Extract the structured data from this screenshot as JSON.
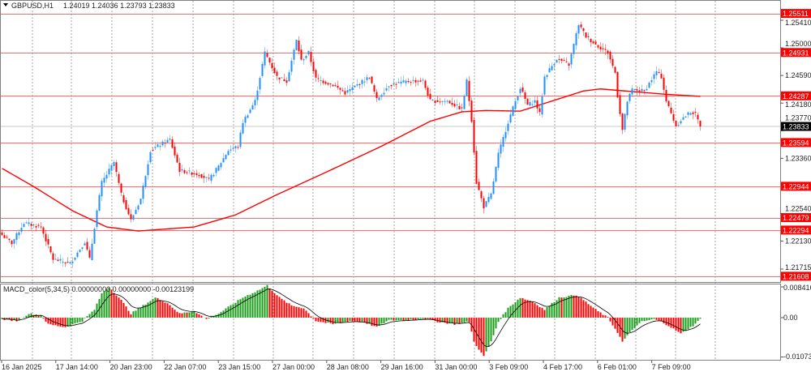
{
  "header": {
    "symbol": "GBPUSD,H1",
    "ohlc": "1.24019 1.24036 1.23793 1.23833",
    "dropdown_icon": "triangle-down-icon"
  },
  "indicator": {
    "label": "MACD_color(5,34,5) 0.00000000 0.00000000 -0.00123199",
    "axis_labels": [
      "0.0084161",
      "0.00",
      "-0.0107381"
    ],
    "axis_values": [
      0.0084161,
      0,
      -0.0107381
    ]
  },
  "colors": {
    "bull": "#1e90ff",
    "bear": "#ff0000",
    "level_line": "#ff6b6b",
    "ma": "#ff0000",
    "macd_up": "#1a9c1a",
    "macd_down": "#ff0000",
    "grid": "#808080"
  },
  "chart_data": {
    "type": "candlestick",
    "symbol": "GBPUSD",
    "timeframe": "H1",
    "y_ticks": [
      "1.25410",
      "1.25000",
      "1.24590",
      "1.24180",
      "1.23770",
      "1.23360",
      "1.22540",
      "1.22130",
      "1.21715"
    ],
    "y_tick_values": [
      1.2541,
      1.25,
      1.2459,
      1.2418,
      1.2377,
      1.2336,
      1.2254,
      1.2213,
      1.21715
    ],
    "x_ticks": [
      "16 Jan 2025",
      "17 Jan 14:00",
      "20 Jan 23:00",
      "22 Jan 07:00",
      "23 Jan 15:00",
      "27 Jan 00:00",
      "28 Jan 08:00",
      "29 Jan 16:00",
      "31 Jan 00:00",
      "3 Feb 09:00",
      "4 Feb 17:00",
      "6 Feb 01:00",
      "7 Feb 09:00"
    ],
    "levels": [
      "1.25511",
      "1.24931",
      "1.24287",
      "1.23594",
      "1.22944",
      "1.22479",
      "1.22294",
      "1.21608"
    ],
    "current_price": "1.23833",
    "close_path": [
      [
        0,
        1.2222
      ],
      [
        4,
        1.221
      ],
      [
        9,
        1.224
      ],
      [
        16,
        1.2234
      ],
      [
        21,
        1.2186
      ],
      [
        28,
        1.218
      ],
      [
        34,
        1.2212
      ],
      [
        36,
        1.2186
      ],
      [
        39,
        1.2258
      ],
      [
        41,
        1.23
      ],
      [
        46,
        1.233
      ],
      [
        49,
        1.2282
      ],
      [
        53,
        1.2244
      ],
      [
        57,
        1.2276
      ],
      [
        61,
        1.2348
      ],
      [
        69,
        1.2364
      ],
      [
        73,
        1.2318
      ],
      [
        81,
        1.2312
      ],
      [
        85,
        1.2304
      ],
      [
        89,
        1.2324
      ],
      [
        93,
        1.2348
      ],
      [
        97,
        1.2354
      ],
      [
        99,
        1.239
      ],
      [
        104,
        1.2421
      ],
      [
        107,
        1.2475
      ],
      [
        108,
        1.2493
      ],
      [
        113,
        1.2457
      ],
      [
        117,
        1.2451
      ],
      [
        121,
        1.2511
      ],
      [
        123,
        1.2481
      ],
      [
        126,
        1.2493
      ],
      [
        129,
        1.2454
      ],
      [
        136,
        1.2445
      ],
      [
        141,
        1.2433
      ],
      [
        146,
        1.2445
      ],
      [
        151,
        1.2457
      ],
      [
        154,
        1.2423
      ],
      [
        159,
        1.2445
      ],
      [
        168,
        1.2451
      ],
      [
        173,
        1.2451
      ],
      [
        176,
        1.2421
      ],
      [
        183,
        1.2421
      ],
      [
        189,
        1.2409
      ],
      [
        191,
        1.2451
      ],
      [
        193,
        1.2393
      ],
      [
        195,
        1.23
      ],
      [
        198,
        1.2264
      ],
      [
        201,
        1.2282
      ],
      [
        204,
        1.2342
      ],
      [
        208,
        1.239
      ],
      [
        211,
        1.2421
      ],
      [
        213,
        1.2441
      ],
      [
        216,
        1.2415
      ],
      [
        219,
        1.2421
      ],
      [
        221,
        1.2402
      ],
      [
        223,
        1.2457
      ],
      [
        228,
        1.2484
      ],
      [
        233,
        1.2475
      ],
      [
        235,
        1.2505
      ],
      [
        237,
        1.2535
      ],
      [
        240,
        1.2517
      ],
      [
        244,
        1.2505
      ],
      [
        249,
        1.2493
      ],
      [
        252,
        1.2463
      ],
      [
        253,
        1.2429
      ],
      [
        255,
        1.2378
      ],
      [
        257,
        1.2421
      ],
      [
        259,
        1.2438
      ],
      [
        264,
        1.2436
      ],
      [
        269,
        1.2465
      ],
      [
        271,
        1.2457
      ],
      [
        273,
        1.2421
      ],
      [
        277,
        1.2384
      ],
      [
        279,
        1.2393
      ],
      [
        283,
        1.2405
      ],
      [
        285,
        1.2402
      ],
      [
        287,
        1.23833
      ]
    ],
    "moving_average": [
      [
        0,
        1.2321
      ],
      [
        13,
        1.2294
      ],
      [
        29,
        1.2258
      ],
      [
        43,
        1.2234
      ],
      [
        56,
        1.2228
      ],
      [
        79,
        1.2234
      ],
      [
        96,
        1.2252
      ],
      [
        113,
        1.2282
      ],
      [
        133,
        1.2315
      ],
      [
        156,
        1.2354
      ],
      [
        176,
        1.2391
      ],
      [
        189,
        1.2405
      ],
      [
        199,
        1.2407
      ],
      [
        213,
        1.2406
      ],
      [
        226,
        1.2421
      ],
      [
        239,
        1.2436
      ],
      [
        246,
        1.2439
      ],
      [
        256,
        1.2436
      ],
      [
        273,
        1.2431
      ],
      [
        287,
        1.2428
      ]
    ],
    "macd": [
      [
        0,
        -0.0004
      ],
      [
        6,
        -0.0009
      ],
      [
        11,
        0.0011
      ],
      [
        16,
        0.0007
      ],
      [
        19,
        -0.0018
      ],
      [
        26,
        -0.0026
      ],
      [
        33,
        -0.0009
      ],
      [
        38,
        0.0022
      ],
      [
        41,
        0.0066
      ],
      [
        44,
        0.0084
      ],
      [
        49,
        0.0048
      ],
      [
        53,
        0.0011
      ],
      [
        58,
        0.0033
      ],
      [
        63,
        0.0055
      ],
      [
        68,
        0.004
      ],
      [
        73,
        0.0011
      ],
      [
        79,
        0.0018
      ],
      [
        84,
        -0.0004
      ],
      [
        89,
        0.0011
      ],
      [
        94,
        0.0033
      ],
      [
        99,
        0.0055
      ],
      [
        106,
        0.0077
      ],
      [
        109,
        0.0088
      ],
      [
        114,
        0.0055
      ],
      [
        119,
        0.0033
      ],
      [
        124,
        0.0026
      ],
      [
        129,
        -0.0009
      ],
      [
        136,
        -0.0018
      ],
      [
        143,
        -0.0009
      ],
      [
        149,
        -0.0013
      ],
      [
        154,
        -0.0026
      ],
      [
        159,
        -0.0007
      ],
      [
        166,
        -0.0007
      ],
      [
        173,
        -0.0002
      ],
      [
        179,
        -0.0011
      ],
      [
        186,
        -0.0018
      ],
      [
        192,
        -0.0011
      ],
      [
        194,
        -0.0066
      ],
      [
        198,
        -0.0106
      ],
      [
        201,
        -0.0066
      ],
      [
        204,
        -0.0011
      ],
      [
        208,
        0.0026
      ],
      [
        213,
        0.0055
      ],
      [
        218,
        0.0044
      ],
      [
        223,
        0.0022
      ],
      [
        229,
        0.0055
      ],
      [
        236,
        0.0062
      ],
      [
        239,
        0.0048
      ],
      [
        244,
        0.0022
      ],
      [
        249,
        0
      ],
      [
        253,
        -0.004
      ],
      [
        255,
        -0.0066
      ],
      [
        259,
        -0.0033
      ],
      [
        263,
        -0.0011
      ],
      [
        268,
        -0.0004
      ],
      [
        271,
        -0.0011
      ],
      [
        274,
        -0.0022
      ],
      [
        279,
        -0.0044
      ],
      [
        284,
        -0.0022
      ],
      [
        287,
        -0.0004
      ]
    ]
  }
}
